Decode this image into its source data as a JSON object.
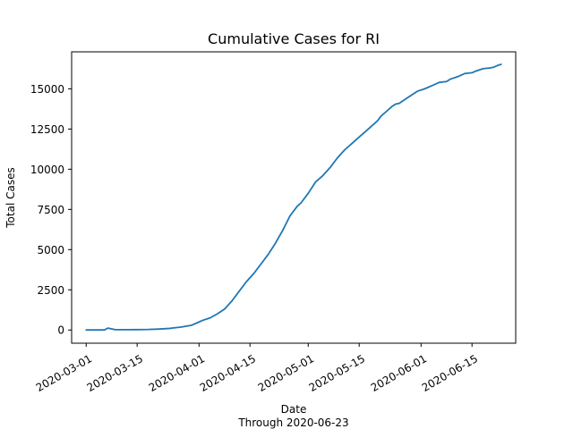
{
  "chart_data": {
    "type": "line",
    "title": "Cumulative Cases for RI",
    "xlabel": "Date",
    "xlabel_sub": "Through 2020-06-23",
    "ylabel": "Total Cases",
    "grid": false,
    "x_ticks": [
      "2020-03-01",
      "2020-03-15",
      "2020-04-01",
      "2020-04-15",
      "2020-05-01",
      "2020-05-15",
      "2020-06-01",
      "2020-06-15"
    ],
    "y_ticks": [
      "0",
      "2500",
      "5000",
      "7500",
      "10000",
      "12500",
      "15000"
    ],
    "xlim": [
      "2020-02-26",
      "2020-06-27"
    ],
    "ylim": [
      -820,
      17300
    ],
    "series": [
      {
        "color": "#1f77b4",
        "points": [
          [
            "2020-03-01",
            2
          ],
          [
            "2020-03-03",
            2
          ],
          [
            "2020-03-05",
            3
          ],
          [
            "2020-03-06",
            5
          ],
          [
            "2020-03-07",
            120
          ],
          [
            "2020-03-09",
            20
          ],
          [
            "2020-03-12",
            20
          ],
          [
            "2020-03-15",
            25
          ],
          [
            "2020-03-18",
            35
          ],
          [
            "2020-03-21",
            60
          ],
          [
            "2020-03-24",
            100
          ],
          [
            "2020-03-25",
            130
          ],
          [
            "2020-03-27",
            180
          ],
          [
            "2020-03-30",
            300
          ],
          [
            "2020-04-01",
            500
          ],
          [
            "2020-04-02",
            600
          ],
          [
            "2020-04-04",
            750
          ],
          [
            "2020-04-06",
            1000
          ],
          [
            "2020-04-08",
            1300
          ],
          [
            "2020-04-10",
            1800
          ],
          [
            "2020-04-12",
            2400
          ],
          [
            "2020-04-14",
            3000
          ],
          [
            "2020-04-16",
            3500
          ],
          [
            "2020-04-18",
            4100
          ],
          [
            "2020-04-20",
            4700
          ],
          [
            "2020-04-22",
            5400
          ],
          [
            "2020-04-24",
            6200
          ],
          [
            "2020-04-26",
            7100
          ],
          [
            "2020-04-28",
            7700
          ],
          [
            "2020-04-29",
            7900
          ],
          [
            "2020-05-01",
            8500
          ],
          [
            "2020-05-03",
            9200
          ],
          [
            "2020-05-05",
            9600
          ],
          [
            "2020-05-07",
            10100
          ],
          [
            "2020-05-09",
            10700
          ],
          [
            "2020-05-11",
            11200
          ],
          [
            "2020-05-13",
            11600
          ],
          [
            "2020-05-15",
            12000
          ],
          [
            "2020-05-17",
            12400
          ],
          [
            "2020-05-19",
            12800
          ],
          [
            "2020-05-20",
            13000
          ],
          [
            "2020-05-21",
            13300
          ],
          [
            "2020-05-22",
            13500
          ],
          [
            "2020-05-24",
            13900
          ],
          [
            "2020-05-25",
            14050
          ],
          [
            "2020-05-26",
            14100
          ],
          [
            "2020-05-28",
            14400
          ],
          [
            "2020-05-30",
            14700
          ],
          [
            "2020-05-31",
            14850
          ],
          [
            "2020-06-02",
            15000
          ],
          [
            "2020-06-04",
            15200
          ],
          [
            "2020-06-06",
            15400
          ],
          [
            "2020-06-08",
            15450
          ],
          [
            "2020-06-09",
            15600
          ],
          [
            "2020-06-11",
            15750
          ],
          [
            "2020-06-13",
            15950
          ],
          [
            "2020-06-15",
            16000
          ],
          [
            "2020-06-16",
            16100
          ],
          [
            "2020-06-18",
            16250
          ],
          [
            "2020-06-20",
            16300
          ],
          [
            "2020-06-21",
            16350
          ],
          [
            "2020-06-22",
            16450
          ],
          [
            "2020-06-23",
            16520
          ]
        ]
      }
    ]
  }
}
